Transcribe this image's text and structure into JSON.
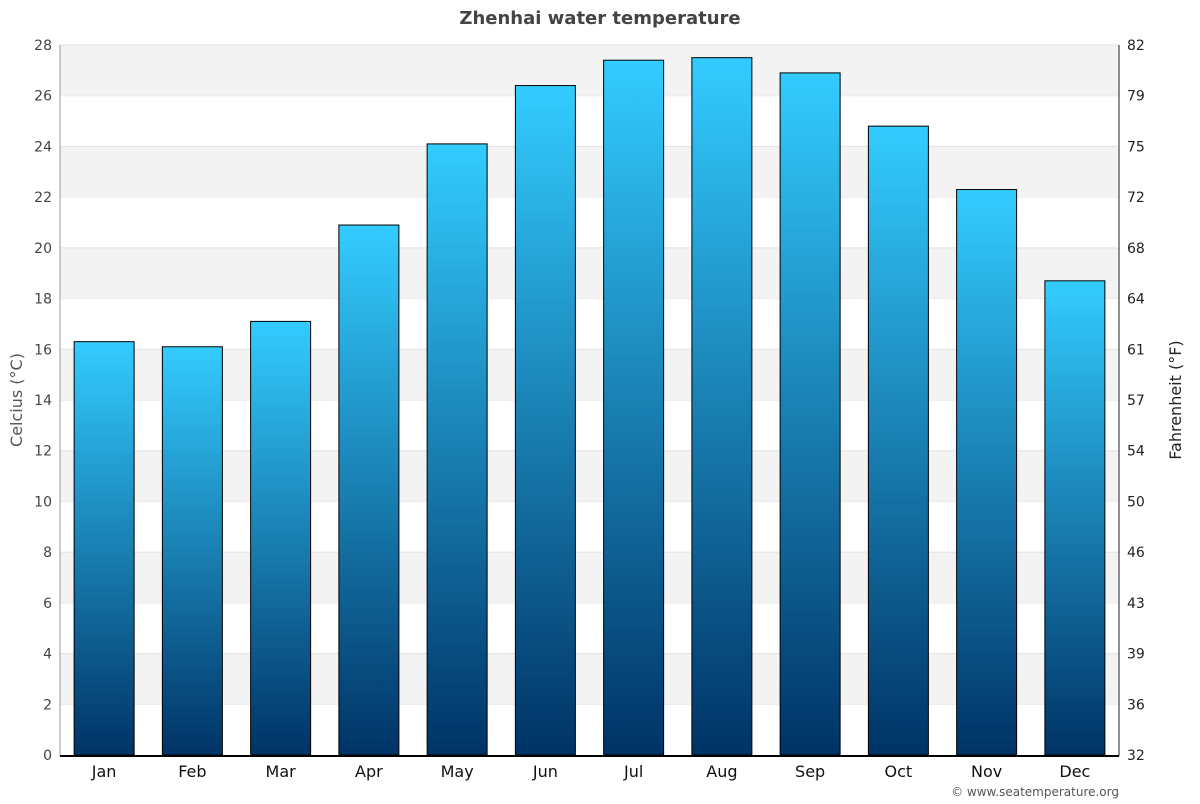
{
  "chart_data": {
    "type": "bar",
    "title": "Zhenhai water temperature",
    "categories": [
      "Jan",
      "Feb",
      "Mar",
      "Apr",
      "May",
      "Jun",
      "Jul",
      "Aug",
      "Sep",
      "Oct",
      "Nov",
      "Dec"
    ],
    "values": [
      16.3,
      16.1,
      17.1,
      20.9,
      24.1,
      26.4,
      27.4,
      27.5,
      26.9,
      24.8,
      22.3,
      18.7
    ],
    "ylabel": "Celcius (°C)",
    "y2label": "Fahrenheit (°F)",
    "ylim": [
      0,
      28
    ],
    "yticks": [
      0,
      2,
      4,
      6,
      8,
      10,
      12,
      14,
      16,
      18,
      20,
      22,
      24,
      26,
      28
    ],
    "y2ticks": [
      "32",
      "36",
      "39",
      "43",
      "46",
      "50",
      "54",
      "57",
      "61",
      "64",
      "68",
      "72",
      "75",
      "79",
      "82"
    ],
    "grid": true,
    "colors": {
      "bar_top": "#33ccff",
      "bar_bottom": "#003366",
      "band": "#f3f3f3"
    }
  },
  "credit": "© www.seatemperature.org"
}
